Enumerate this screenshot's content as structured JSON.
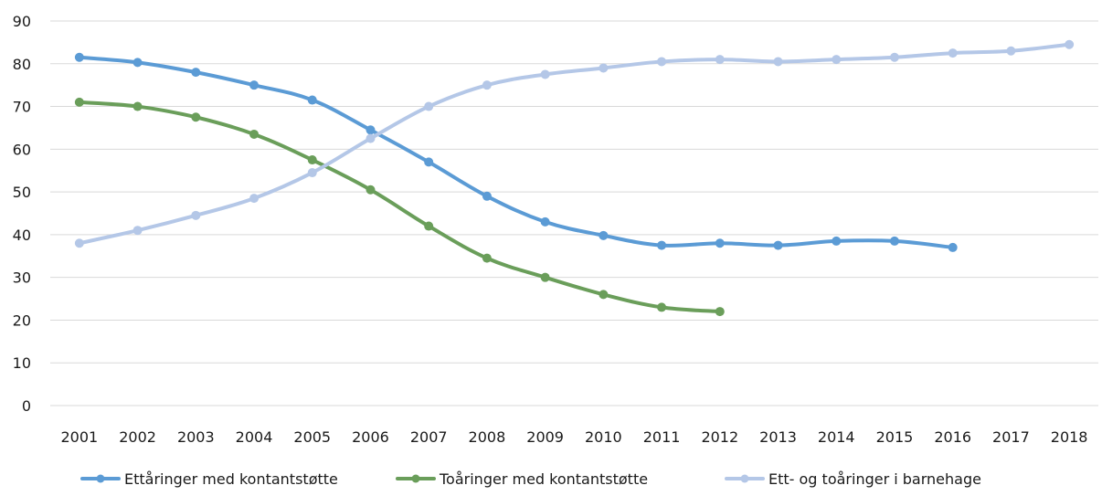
{
  "chart_data": {
    "type": "line",
    "title": "",
    "xlabel": "",
    "ylabel": "",
    "ylim": [
      0,
      90
    ],
    "yticks": [
      0,
      10,
      20,
      30,
      40,
      50,
      60,
      70,
      80,
      90
    ],
    "grid": true,
    "legend_position": "bottom",
    "x": [
      "2001",
      "2002",
      "2003",
      "2004",
      "2005",
      "2006",
      "2007",
      "2008",
      "2009",
      "2010",
      "2011",
      "2012",
      "2013",
      "2014",
      "2015",
      "2016",
      "2017",
      "2018"
    ],
    "series": [
      {
        "name": "Ettåringer med kontantstøtte",
        "color": "#5b9bd5",
        "values": [
          81.5,
          80.3,
          78.0,
          75.0,
          71.5,
          64.5,
          57.0,
          49.0,
          43.0,
          39.8,
          37.5,
          38.0,
          37.5,
          38.5,
          38.5,
          37.0,
          null,
          null
        ]
      },
      {
        "name": "Toåringer med kontantstøtte",
        "color": "#6a9e5a",
        "values": [
          71.0,
          70.0,
          67.5,
          63.5,
          57.5,
          50.5,
          42.0,
          34.5,
          30.0,
          26.0,
          23.0,
          22.0,
          null,
          null,
          null,
          null,
          null,
          null
        ]
      },
      {
        "name": "Ett- og toåringer i barnehage",
        "color": "#b4c7e7",
        "values": [
          38.0,
          41.0,
          44.5,
          48.5,
          54.5,
          62.5,
          70.0,
          75.0,
          77.5,
          79.0,
          80.5,
          81.0,
          80.5,
          81.0,
          81.5,
          82.5,
          83.0,
          84.5
        ]
      }
    ]
  }
}
